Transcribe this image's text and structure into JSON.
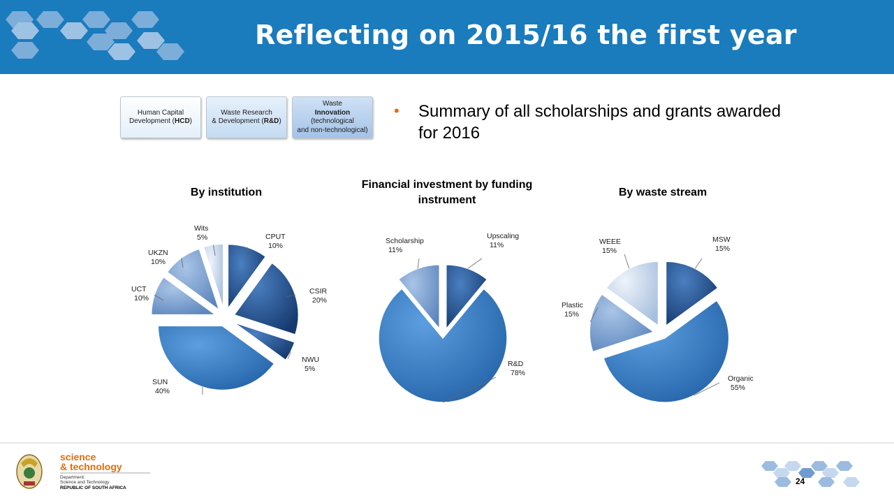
{
  "header": {
    "title": "Reflecting on 2015/16 the first year"
  },
  "pillars": [
    {
      "line1": "Human Capital",
      "line2_pre": "Development (",
      "line2_bold": "HCD",
      "line2_post": ")"
    },
    {
      "line1": "Waste Research",
      "line2_pre": "& Development (",
      "line2_bold": "R&D",
      "line2_post": ")"
    },
    {
      "line1": "Waste",
      "line2": "Innovation",
      "line3": "(technological",
      "line4": "and non-technological)"
    }
  ],
  "bullet": {
    "text": "Summary of all scholarships and grants awarded for 2016"
  },
  "chart_data": [
    {
      "type": "pie",
      "title": "By institution",
      "slices": [
        {
          "name": "CPUT",
          "value": 10,
          "label": "10%"
        },
        {
          "name": "CSIR",
          "value": 20,
          "label": "20%"
        },
        {
          "name": "NWU",
          "value": 5,
          "label": "5%"
        },
        {
          "name": "SUN",
          "value": 40,
          "label": "40%"
        },
        {
          "name": "UCT",
          "value": 10,
          "label": "10%"
        },
        {
          "name": "UKZN",
          "value": 10,
          "label": "10%"
        },
        {
          "name": "Wits",
          "value": 5,
          "label": "5%"
        }
      ]
    },
    {
      "type": "pie",
      "title": "Financial investment by funding instrument",
      "slices": [
        {
          "name": "Upscaling",
          "value": 11,
          "label": "11%"
        },
        {
          "name": "R&D",
          "value": 78,
          "label": "78%"
        },
        {
          "name": "Scholarship",
          "value": 11,
          "label": "11%"
        }
      ]
    },
    {
      "type": "pie",
      "title": "By waste stream",
      "slices": [
        {
          "name": "MSW",
          "value": 15,
          "label": "15%"
        },
        {
          "name": "Organic",
          "value": 55,
          "label": "55%"
        },
        {
          "name": "Plastic",
          "value": 15,
          "label": "15%"
        },
        {
          "name": "WEEE",
          "value": 15,
          "label": "15%"
        }
      ]
    }
  ],
  "footer": {
    "logo_line1": "science",
    "logo_line2": "& technology",
    "dept_line1": "Department:",
    "dept_line2": "Science and Technology",
    "dept_line3": "REPUBLIC OF SOUTH AFRICA",
    "page_number": "24"
  },
  "colors": {
    "header": "#1a7bbd",
    "bullet": "#e36c0a",
    "dark_blue": "#1f4e8c",
    "mid_blue": "#3b82c8",
    "light_blue": "#c5d5ea"
  }
}
